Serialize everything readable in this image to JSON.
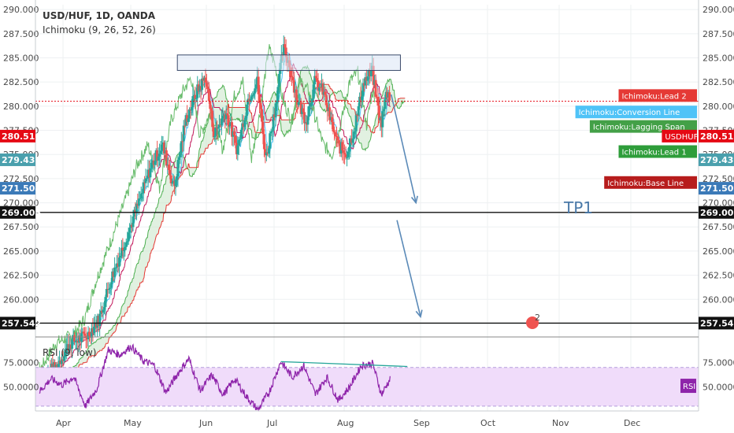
{
  "header": {
    "title": "USD/HUF, 1D, OANDA",
    "indicator": "Ichimoku (9, 26, 52, 26)",
    "rsi_label": "RSI (9, low)"
  },
  "annotations": {
    "tp1": "TP1",
    "badge": "2"
  },
  "colors": {
    "bull": "#26a69a",
    "bear": "#ef5350",
    "conversion": "#4fc3f7",
    "base": "#c2185b",
    "lagging": "#66bb6a",
    "lead1": "#4caf50",
    "lead2": "#e53935",
    "rsi": "#8e24aa",
    "rsi_band": "#f0dcfa",
    "arrow": "#5b8ab8"
  },
  "chart_data": [
    {
      "type": "candlestick",
      "symbol": "USD/HUF",
      "timeframe": "1D",
      "source": "OANDA",
      "x_ticks": [
        "Apr",
        "May",
        "Jun",
        "Jul",
        "Aug",
        "Sep",
        "Oct",
        "Nov",
        "Dec"
      ],
      "y_ticks": [
        "257.500",
        "260.000",
        "262.500",
        "265.000",
        "267.500",
        "270.000",
        "272.500",
        "275.000",
        "277.500",
        "280.000",
        "282.500",
        "285.000",
        "287.500",
        "290.000"
      ],
      "ylim": [
        256.6,
        290.5
      ],
      "close_anchors": [
        {
          "x": 0,
          "y": 252.0
        },
        {
          "x": 30,
          "y": 253.0
        },
        {
          "x": 55,
          "y": 255.5
        },
        {
          "x": 85,
          "y": 256.3
        },
        {
          "x": 105,
          "y": 258.0
        },
        {
          "x": 125,
          "y": 262.0
        },
        {
          "x": 150,
          "y": 266.0
        },
        {
          "x": 175,
          "y": 270.2
        },
        {
          "x": 195,
          "y": 273.8
        },
        {
          "x": 215,
          "y": 276.0
        },
        {
          "x": 235,
          "y": 271.5
        },
        {
          "x": 255,
          "y": 278.5
        },
        {
          "x": 275,
          "y": 281.5
        },
        {
          "x": 290,
          "y": 283.0
        },
        {
          "x": 305,
          "y": 277.0
        },
        {
          "x": 325,
          "y": 279.5
        },
        {
          "x": 345,
          "y": 275.5
        },
        {
          "x": 365,
          "y": 281.0
        },
        {
          "x": 380,
          "y": 282.5
        },
        {
          "x": 395,
          "y": 274.5
        },
        {
          "x": 410,
          "y": 279.5
        },
        {
          "x": 425,
          "y": 286.0
        },
        {
          "x": 435,
          "y": 284.5
        },
        {
          "x": 450,
          "y": 280.5
        },
        {
          "x": 465,
          "y": 278.5
        },
        {
          "x": 480,
          "y": 282.5
        },
        {
          "x": 495,
          "y": 281.5
        },
        {
          "x": 505,
          "y": 279.0
        },
        {
          "x": 520,
          "y": 276.0
        },
        {
          "x": 535,
          "y": 275.0
        },
        {
          "x": 550,
          "y": 278.0
        },
        {
          "x": 565,
          "y": 282.5
        },
        {
          "x": 580,
          "y": 283.5
        },
        {
          "x": 595,
          "y": 278.0
        },
        {
          "x": 605,
          "y": 281.5
        },
        {
          "x": 610,
          "y": 281.0
        }
      ],
      "levels": [
        {
          "label": "280.510",
          "value": 280.51,
          "color": "#e50914",
          "style": "dotted"
        },
        {
          "label": "269.005",
          "value": 269.005,
          "color": "#111111",
          "style": "solid"
        },
        {
          "label": "257.542",
          "value": 257.542,
          "color": "#111111",
          "style": "solid"
        }
      ],
      "axis_badges": [
        {
          "label": "280.510",
          "value": 276.9,
          "color": "#e50914"
        },
        {
          "label": "279.437",
          "value": 274.45,
          "color": "#4aa0ad"
        },
        {
          "label": "271.504",
          "value": 271.504,
          "color": "#3b7ab8"
        },
        {
          "label": "269.005",
          "value": 269.005,
          "color": "#111111"
        },
        {
          "label": "257.542",
          "value": 257.542,
          "color": "#111111"
        }
      ],
      "legend_tags": [
        {
          "label": "Ichimoku:Lead 2",
          "value": 281.1,
          "color": "#e53935"
        },
        {
          "label": "Ichimoku:Conversion Line",
          "value": 279.4,
          "color": "#4fc3f7"
        },
        {
          "label": "Ichimoku:Lagging Span",
          "value": 277.9,
          "color": "#43a047"
        },
        {
          "label": "USDHUF",
          "value": 276.9,
          "color": "#e50914"
        },
        {
          "label": "Ichimoku:Lead 1",
          "value": 275.3,
          "color": "#2e9d3a"
        },
        {
          "label": "Ichimoku:Base Line",
          "value": 272.1,
          "color": "#b71c1c"
        }
      ],
      "resistance_zone": {
        "x_start": 240,
        "x_end": 628,
        "y_low": 283.7,
        "y_high": 285.3
      },
      "projection_arrows": [
        {
          "from": {
            "x": 612,
            "y": 281.2
          },
          "to": {
            "x": 655,
            "y": 270.0
          }
        },
        {
          "from": {
            "x": 622,
            "y": 268.2
          },
          "to": {
            "x": 663,
            "y": 258.2
          }
        }
      ]
    },
    {
      "type": "line",
      "title": "RSI (9, low)",
      "y_ticks": [
        "50.0000",
        "75.0000"
      ],
      "ylim": [
        25,
        95
      ],
      "band": [
        30,
        70
      ],
      "series_label": "RSI",
      "rsi_anchors": [
        {
          "x": 0,
          "y": 45
        },
        {
          "x": 20,
          "y": 58
        },
        {
          "x": 40,
          "y": 52
        },
        {
          "x": 60,
          "y": 60
        },
        {
          "x": 80,
          "y": 30
        },
        {
          "x": 100,
          "y": 48
        },
        {
          "x": 120,
          "y": 88
        },
        {
          "x": 140,
          "y": 83
        },
        {
          "x": 160,
          "y": 92
        },
        {
          "x": 180,
          "y": 77
        },
        {
          "x": 200,
          "y": 72
        },
        {
          "x": 220,
          "y": 44
        },
        {
          "x": 240,
          "y": 63
        },
        {
          "x": 260,
          "y": 79
        },
        {
          "x": 280,
          "y": 46
        },
        {
          "x": 300,
          "y": 62
        },
        {
          "x": 320,
          "y": 42
        },
        {
          "x": 340,
          "y": 58
        },
        {
          "x": 360,
          "y": 40
        },
        {
          "x": 380,
          "y": 26
        },
        {
          "x": 400,
          "y": 45
        },
        {
          "x": 420,
          "y": 76
        },
        {
          "x": 440,
          "y": 60
        },
        {
          "x": 460,
          "y": 72
        },
        {
          "x": 480,
          "y": 42
        },
        {
          "x": 500,
          "y": 60
        },
        {
          "x": 520,
          "y": 36
        },
        {
          "x": 540,
          "y": 50
        },
        {
          "x": 560,
          "y": 72
        },
        {
          "x": 580,
          "y": 74
        },
        {
          "x": 595,
          "y": 42
        },
        {
          "x": 610,
          "y": 58
        }
      ],
      "divergence_line": {
        "from": {
          "x": 420,
          "y": 76
        },
        "to": {
          "x": 640,
          "y": 71
        }
      }
    }
  ]
}
